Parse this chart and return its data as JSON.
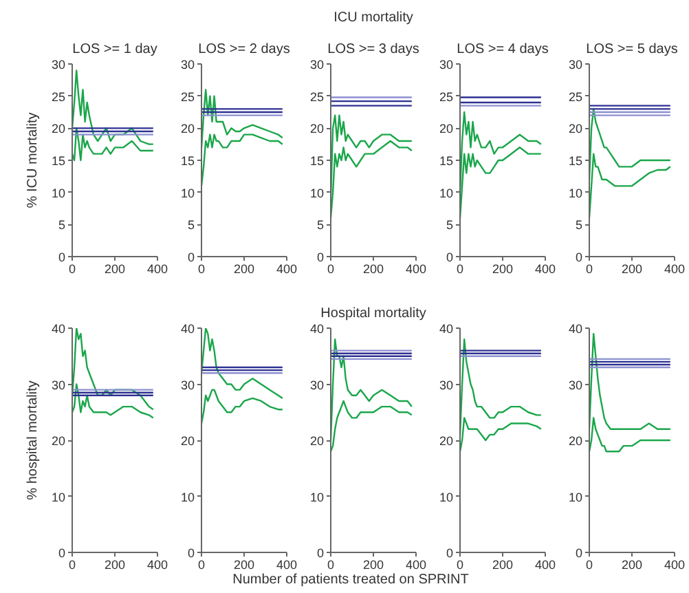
{
  "chart_data": [
    {
      "type": "line",
      "title": "LOS >= 1 day",
      "ylabel": "% ICU mortality",
      "xlim": [
        0,
        400
      ],
      "xticks": [
        0,
        200,
        400
      ],
      "ylim": [
        0,
        30
      ],
      "yticks": [
        0,
        5,
        10,
        15,
        20,
        25,
        30
      ],
      "grid": false,
      "series": [
        {
          "color": "#1aa64a",
          "x": [
            0,
            10,
            20,
            30,
            40,
            50,
            60,
            70,
            80,
            100,
            120,
            140,
            160,
            180,
            200,
            240,
            280,
            320,
            360,
            380
          ],
          "values": [
            20,
            24,
            29,
            25,
            22,
            26,
            21,
            24,
            22,
            19,
            18,
            19,
            20,
            18,
            19,
            19,
            20,
            18,
            17.5,
            17.5
          ]
        },
        {
          "color": "#1aa64a",
          "x": [
            0,
            10,
            20,
            30,
            40,
            50,
            60,
            70,
            80,
            100,
            120,
            140,
            160,
            180,
            200,
            240,
            280,
            320,
            360,
            380
          ],
          "values": [
            16,
            15,
            20,
            18,
            15,
            19,
            17,
            18,
            17,
            16,
            16,
            16,
            17,
            16,
            17,
            17,
            18,
            16.5,
            16.5,
            16.5
          ]
        },
        {
          "color": "#2e3192",
          "x": [
            0,
            380
          ],
          "values": [
            20,
            20
          ]
        },
        {
          "color": "#2e3192",
          "x": [
            0,
            380
          ],
          "values": [
            19.5,
            19.5
          ]
        },
        {
          "color": "#8c8fd0",
          "x": [
            0,
            380
          ],
          "values": [
            19,
            19
          ]
        }
      ]
    },
    {
      "type": "line",
      "title": "LOS >= 2 days",
      "xlim": [
        0,
        400
      ],
      "xticks": [
        0,
        200,
        400
      ],
      "ylim": [
        0,
        30
      ],
      "yticks": [
        0,
        5,
        10,
        15,
        20,
        25,
        30
      ],
      "grid": false,
      "series": [
        {
          "color": "#1aa64a",
          "x": [
            0,
            10,
            20,
            30,
            40,
            50,
            60,
            70,
            80,
            100,
            120,
            140,
            160,
            180,
            200,
            240,
            280,
            320,
            360,
            380
          ],
          "values": [
            17,
            22,
            26,
            22,
            25,
            21,
            25,
            21,
            21,
            21,
            19,
            20,
            19.5,
            19.5,
            20,
            20.5,
            20,
            19.5,
            19,
            18.5
          ]
        },
        {
          "color": "#1aa64a",
          "x": [
            0,
            10,
            20,
            30,
            40,
            50,
            60,
            70,
            80,
            100,
            120,
            140,
            160,
            180,
            200,
            240,
            280,
            320,
            360,
            380
          ],
          "values": [
            11,
            14,
            18,
            17,
            19,
            17,
            19,
            18,
            18,
            17,
            17,
            18,
            18,
            18,
            19,
            19,
            18.5,
            18,
            18,
            17.5
          ]
        },
        {
          "color": "#2e3192",
          "x": [
            0,
            380
          ],
          "values": [
            23,
            23
          ]
        },
        {
          "color": "#2e3192",
          "x": [
            0,
            380
          ],
          "values": [
            22.5,
            22.5
          ]
        },
        {
          "color": "#8c8fd0",
          "x": [
            0,
            380
          ],
          "values": [
            22,
            22
          ]
        }
      ]
    },
    {
      "type": "line",
      "title": "ICU mortality",
      "subtitle": "LOS >= 3 days",
      "xlim": [
        0,
        400
      ],
      "xticks": [
        0,
        200,
        400
      ],
      "ylim": [
        0,
        30
      ],
      "yticks": [
        0,
        5,
        10,
        15,
        20,
        25,
        30
      ],
      "grid": false,
      "series": [
        {
          "color": "#1aa64a",
          "x": [
            0,
            10,
            20,
            30,
            40,
            50,
            60,
            70,
            80,
            100,
            120,
            140,
            160,
            180,
            200,
            240,
            280,
            320,
            360,
            380
          ],
          "values": [
            9,
            20,
            22,
            18,
            22,
            19,
            21,
            18,
            19,
            18,
            17,
            18,
            18,
            17,
            18,
            19,
            19,
            18,
            18,
            18
          ]
        },
        {
          "color": "#1aa64a",
          "x": [
            0,
            10,
            20,
            30,
            40,
            50,
            60,
            70,
            80,
            100,
            120,
            140,
            160,
            180,
            200,
            240,
            280,
            320,
            360,
            380
          ],
          "values": [
            6,
            10,
            16,
            14,
            16,
            15,
            17,
            15,
            16,
            15,
            14,
            15,
            16,
            16,
            16,
            17,
            18,
            17,
            17,
            16.5
          ]
        },
        {
          "color": "#8c8fd0",
          "x": [
            0,
            380
          ],
          "values": [
            24.8,
            24.8
          ]
        },
        {
          "color": "#2e3192",
          "x": [
            0,
            380
          ],
          "values": [
            24.2,
            24.2
          ]
        },
        {
          "color": "#2e3192",
          "x": [
            0,
            380
          ],
          "values": [
            23.5,
            23.5
          ]
        }
      ]
    },
    {
      "type": "line",
      "title": "LOS >= 4 days",
      "xlim": [
        0,
        400
      ],
      "xticks": [
        0,
        200,
        400
      ],
      "ylim": [
        0,
        30
      ],
      "yticks": [
        0,
        5,
        10,
        15,
        20,
        25,
        30
      ],
      "grid": false,
      "series": [
        {
          "color": "#1aa64a",
          "x": [
            0,
            10,
            20,
            30,
            40,
            50,
            60,
            70,
            80,
            100,
            120,
            140,
            160,
            180,
            200,
            240,
            280,
            320,
            360,
            380
          ],
          "values": [
            10,
            18,
            22.5,
            19,
            21,
            17,
            21,
            18,
            19,
            17,
            17,
            18,
            16,
            17,
            17,
            18,
            19,
            18,
            18,
            17.5
          ]
        },
        {
          "color": "#1aa64a",
          "x": [
            0,
            10,
            20,
            30,
            40,
            50,
            60,
            70,
            80,
            100,
            120,
            140,
            160,
            180,
            200,
            240,
            280,
            320,
            360,
            380
          ],
          "values": [
            6,
            11,
            16,
            13,
            16,
            14,
            16,
            14,
            15,
            14,
            13,
            13,
            14,
            15,
            15,
            16,
            17,
            16,
            16,
            16
          ]
        },
        {
          "color": "#2e3192",
          "x": [
            0,
            380
          ],
          "values": [
            24.8,
            24.8
          ]
        },
        {
          "color": "#2e3192",
          "x": [
            0,
            380
          ],
          "values": [
            24,
            24
          ]
        },
        {
          "color": "#8c8fd0",
          "x": [
            0,
            380
          ],
          "values": [
            23.5,
            23.5
          ]
        }
      ]
    },
    {
      "type": "line",
      "title": "LOS >= 5 days",
      "xlim": [
        0,
        400
      ],
      "xticks": [
        0,
        200,
        400
      ],
      "ylim": [
        0,
        30
      ],
      "yticks": [
        0,
        5,
        10,
        15,
        20,
        25,
        30
      ],
      "grid": false,
      "series": [
        {
          "color": "#1aa64a",
          "x": [
            0,
            10,
            20,
            30,
            40,
            50,
            60,
            70,
            80,
            100,
            120,
            140,
            160,
            180,
            200,
            240,
            280,
            320,
            360,
            380
          ],
          "values": [
            12,
            20,
            23,
            21,
            20,
            19,
            18,
            17,
            17,
            16,
            15,
            14,
            14,
            14,
            14,
            15,
            15,
            15,
            15,
            15
          ]
        },
        {
          "color": "#1aa64a",
          "x": [
            0,
            10,
            20,
            30,
            40,
            50,
            60,
            70,
            80,
            100,
            120,
            140,
            160,
            180,
            200,
            240,
            280,
            320,
            360,
            380
          ],
          "values": [
            6,
            11,
            16,
            14,
            14,
            13,
            12,
            12,
            12,
            11.5,
            11,
            11,
            11,
            11,
            11,
            12,
            13,
            13.5,
            13.5,
            14
          ]
        },
        {
          "color": "#2e3192",
          "x": [
            0,
            380
          ],
          "values": [
            23.5,
            23.5
          ]
        },
        {
          "color": "#2e3192",
          "x": [
            0,
            380
          ],
          "values": [
            23,
            23
          ]
        },
        {
          "color": "#8c8fd0",
          "x": [
            0,
            380
          ],
          "values": [
            22.5,
            22.5
          ]
        },
        {
          "color": "#8c8fd0",
          "x": [
            0,
            380
          ],
          "values": [
            22,
            22
          ]
        }
      ]
    },
    {
      "type": "line",
      "ylabel": "% hospital mortality",
      "xlim": [
        0,
        400
      ],
      "xticks": [
        0,
        200,
        400
      ],
      "ylim": [
        0,
        40
      ],
      "yticks": [
        0,
        10,
        20,
        30,
        40
      ],
      "grid": false,
      "series": [
        {
          "color": "#1aa64a",
          "x": [
            0,
            10,
            20,
            30,
            40,
            50,
            60,
            70,
            80,
            100,
            120,
            140,
            160,
            180,
            200,
            240,
            280,
            320,
            360,
            380
          ],
          "values": [
            28,
            33,
            40,
            38,
            39,
            35,
            36,
            33,
            32,
            30,
            28,
            28,
            29,
            28,
            29,
            29,
            29,
            28,
            26,
            25.5
          ]
        },
        {
          "color": "#1aa64a",
          "x": [
            0,
            10,
            20,
            30,
            40,
            50,
            60,
            70,
            80,
            100,
            120,
            140,
            160,
            180,
            200,
            240,
            280,
            320,
            360,
            380
          ],
          "values": [
            25,
            26,
            30,
            28,
            25,
            27,
            26,
            28,
            26,
            25,
            25,
            25,
            25,
            24.5,
            25,
            26,
            26,
            25,
            24.5,
            24
          ]
        },
        {
          "color": "#8c8fd0",
          "x": [
            0,
            380
          ],
          "values": [
            29,
            29
          ]
        },
        {
          "color": "#2e3192",
          "x": [
            0,
            380
          ],
          "values": [
            28.5,
            28.5
          ]
        },
        {
          "color": "#2e3192",
          "x": [
            0,
            380
          ],
          "values": [
            28,
            28
          ]
        }
      ]
    },
    {
      "type": "line",
      "xlim": [
        0,
        400
      ],
      "xticks": [
        0,
        200,
        400
      ],
      "ylim": [
        0,
        40
      ],
      "yticks": [
        0,
        10,
        20,
        30,
        40
      ],
      "grid": false,
      "series": [
        {
          "color": "#1aa64a",
          "x": [
            0,
            10,
            20,
            30,
            40,
            50,
            60,
            70,
            80,
            100,
            120,
            140,
            160,
            180,
            200,
            240,
            280,
            320,
            360,
            380
          ],
          "values": [
            32,
            36,
            40,
            39,
            36,
            38,
            36,
            33,
            32,
            31,
            30,
            30,
            29,
            29,
            30,
            31,
            30,
            29,
            28,
            27.5
          ]
        },
        {
          "color": "#1aa64a",
          "x": [
            0,
            10,
            20,
            30,
            40,
            50,
            60,
            70,
            80,
            100,
            120,
            140,
            160,
            180,
            200,
            240,
            280,
            320,
            360,
            380
          ],
          "values": [
            23,
            25,
            28,
            27,
            28,
            29,
            29,
            28,
            27,
            26,
            25,
            25,
            26,
            26,
            27,
            27.5,
            27,
            26,
            25.5,
            25.5
          ]
        },
        {
          "color": "#2e3192",
          "x": [
            0,
            380
          ],
          "values": [
            33,
            33
          ]
        },
        {
          "color": "#2e3192",
          "x": [
            0,
            380
          ],
          "values": [
            32.5,
            32.5
          ]
        },
        {
          "color": "#8c8fd0",
          "x": [
            0,
            380
          ],
          "values": [
            32,
            32
          ]
        }
      ]
    },
    {
      "type": "line",
      "title": "Hospital mortality",
      "xlabel": "Number of patients treated on SPRINT",
      "xlim": [
        0,
        400
      ],
      "xticks": [
        0,
        200,
        400
      ],
      "ylim": [
        0,
        40
      ],
      "yticks": [
        0,
        10,
        20,
        30,
        40
      ],
      "grid": false,
      "series": [
        {
          "color": "#1aa64a",
          "x": [
            0,
            10,
            20,
            30,
            40,
            50,
            60,
            70,
            80,
            100,
            120,
            140,
            160,
            180,
            200,
            240,
            280,
            320,
            360,
            380
          ],
          "values": [
            20,
            30,
            38,
            35,
            35,
            33,
            35,
            31,
            29,
            28,
            28,
            29,
            28,
            27,
            28,
            29,
            28,
            27,
            27,
            26
          ]
        },
        {
          "color": "#1aa64a",
          "x": [
            0,
            10,
            20,
            30,
            40,
            50,
            60,
            70,
            80,
            100,
            120,
            140,
            160,
            180,
            200,
            240,
            280,
            320,
            360,
            380
          ],
          "values": [
            18,
            19,
            22,
            24,
            25,
            26,
            27,
            26,
            25,
            24,
            24,
            25,
            25,
            25,
            25,
            26,
            26,
            25,
            25,
            24.5
          ]
        },
        {
          "color": "#8c8fd0",
          "x": [
            0,
            380
          ],
          "values": [
            36,
            36
          ]
        },
        {
          "color": "#2e3192",
          "x": [
            0,
            380
          ],
          "values": [
            35.5,
            35.5
          ]
        },
        {
          "color": "#2e3192",
          "x": [
            0,
            380
          ],
          "values": [
            35,
            35
          ]
        },
        {
          "color": "#8c8fd0",
          "x": [
            0,
            380
          ],
          "values": [
            34.5,
            34.5
          ]
        }
      ]
    },
    {
      "type": "line",
      "xlim": [
        0,
        400
      ],
      "xticks": [
        0,
        200,
        400
      ],
      "ylim": [
        0,
        40
      ],
      "yticks": [
        0,
        10,
        20,
        30,
        40
      ],
      "grid": false,
      "series": [
        {
          "color": "#1aa64a",
          "x": [
            0,
            10,
            20,
            30,
            40,
            50,
            60,
            70,
            80,
            100,
            120,
            140,
            160,
            180,
            200,
            240,
            280,
            320,
            360,
            380
          ],
          "values": [
            21,
            30,
            38,
            34,
            32,
            30,
            29,
            27,
            26,
            26,
            25,
            24,
            24,
            25,
            25,
            26,
            26,
            25,
            24.5,
            24.5
          ]
        },
        {
          "color": "#1aa64a",
          "x": [
            0,
            10,
            20,
            30,
            40,
            50,
            60,
            70,
            80,
            100,
            120,
            140,
            160,
            180,
            200,
            240,
            280,
            320,
            360,
            380
          ],
          "values": [
            18,
            20,
            24,
            23,
            22,
            22,
            22,
            22,
            22,
            21,
            20,
            21,
            21,
            22,
            22,
            23,
            23,
            23,
            22.5,
            22
          ]
        },
        {
          "color": "#2e3192",
          "x": [
            0,
            380
          ],
          "values": [
            36,
            36
          ]
        },
        {
          "color": "#2e3192",
          "x": [
            0,
            380
          ],
          "values": [
            35.5,
            35.5
          ]
        },
        {
          "color": "#8c8fd0",
          "x": [
            0,
            380
          ],
          "values": [
            35,
            35
          ]
        }
      ]
    },
    {
      "type": "line",
      "xlim": [
        0,
        400
      ],
      "xticks": [
        0,
        200,
        400
      ],
      "ylim": [
        0,
        40
      ],
      "yticks": [
        0,
        10,
        20,
        30,
        40
      ],
      "grid": false,
      "series": [
        {
          "color": "#1aa64a",
          "x": [
            0,
            10,
            20,
            30,
            40,
            50,
            60,
            70,
            80,
            100,
            120,
            140,
            160,
            180,
            200,
            240,
            280,
            320,
            360,
            380
          ],
          "values": [
            22,
            31,
            39,
            35,
            31,
            28,
            26,
            24,
            23,
            22,
            22,
            22,
            22,
            22,
            22,
            22,
            23,
            22,
            22,
            22
          ]
        },
        {
          "color": "#1aa64a",
          "x": [
            0,
            10,
            20,
            30,
            40,
            50,
            60,
            70,
            80,
            100,
            120,
            140,
            160,
            180,
            200,
            240,
            280,
            320,
            360,
            380
          ],
          "values": [
            18,
            20,
            24,
            22,
            21,
            20,
            19,
            19,
            18,
            18,
            18,
            18,
            19,
            19,
            19,
            20,
            20,
            20,
            20,
            20
          ]
        },
        {
          "color": "#8c8fd0",
          "x": [
            0,
            380
          ],
          "values": [
            34.5,
            34.5
          ]
        },
        {
          "color": "#2e3192",
          "x": [
            0,
            380
          ],
          "values": [
            34,
            34
          ]
        },
        {
          "color": "#2e3192",
          "x": [
            0,
            380
          ],
          "values": [
            33.5,
            33.5
          ]
        },
        {
          "color": "#8c8fd0",
          "x": [
            0,
            380
          ],
          "values": [
            33,
            33
          ]
        }
      ]
    }
  ]
}
